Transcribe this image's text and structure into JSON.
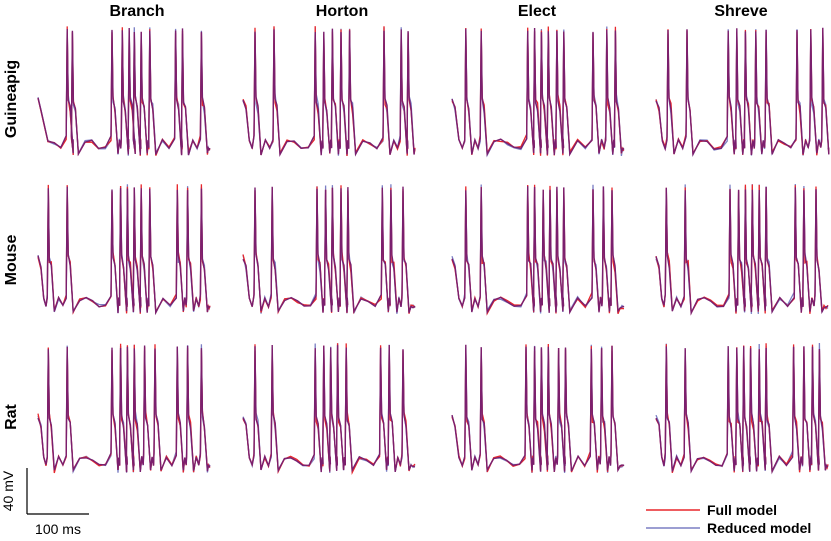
{
  "chart_data": {
    "type": "line",
    "columns": [
      "Branch",
      "Horton",
      "Elect",
      "Shreve"
    ],
    "rows": [
      "Guineapig",
      "Mouse",
      "Rat"
    ],
    "series": [
      {
        "name": "Full model",
        "color": "#e8262b"
      },
      {
        "name": "Reduced model",
        "color": "#7b7fc4"
      }
    ],
    "overlap_color": "#7a1f6e",
    "scale_bar": {
      "voltage_label": "40 mV",
      "time_label": "100 ms"
    },
    "legend_position": "bottom-right",
    "grid": false,
    "spike_times_fraction": {
      "Guineapig": {
        "Branch": [
          0.17,
          0.2,
          0.43,
          0.49,
          0.53,
          0.56,
          0.6,
          0.65,
          0.8,
          0.84,
          0.95
        ],
        "Horton": [
          0.07,
          0.18,
          0.42,
          0.47,
          0.52,
          0.57,
          0.62,
          0.82,
          0.92,
          0.96
        ],
        "Elect": [
          0.08,
          0.17,
          0.44,
          0.48,
          0.52,
          0.56,
          0.61,
          0.65,
          0.82,
          0.9,
          0.95
        ],
        "Shreve": [
          0.07,
          0.18,
          0.42,
          0.47,
          0.52,
          0.58,
          0.64,
          0.82,
          0.9,
          0.97
        ]
      },
      "Mouse": {
        "Branch": [
          0.06,
          0.17,
          0.43,
          0.48,
          0.52,
          0.56,
          0.6,
          0.65,
          0.81,
          0.87,
          0.95
        ],
        "Horton": [
          0.07,
          0.17,
          0.43,
          0.48,
          0.52,
          0.57,
          0.61,
          0.81,
          0.86,
          0.93
        ],
        "Elect": [
          0.08,
          0.17,
          0.44,
          0.48,
          0.53,
          0.57,
          0.61,
          0.65,
          0.82,
          0.88,
          0.93
        ],
        "Shreve": [
          0.06,
          0.17,
          0.43,
          0.48,
          0.52,
          0.56,
          0.6,
          0.64,
          0.81,
          0.86,
          0.93
        ]
      },
      "Rat": {
        "Branch": [
          0.06,
          0.17,
          0.43,
          0.48,
          0.52,
          0.56,
          0.62,
          0.68,
          0.81,
          0.87,
          0.95
        ],
        "Horton": [
          0.07,
          0.17,
          0.42,
          0.47,
          0.51,
          0.55,
          0.6,
          0.8,
          0.85,
          0.93
        ],
        "Elect": [
          0.08,
          0.17,
          0.43,
          0.48,
          0.52,
          0.56,
          0.62,
          0.66,
          0.81,
          0.87,
          0.93
        ],
        "Shreve": [
          0.06,
          0.17,
          0.42,
          0.47,
          0.51,
          0.55,
          0.6,
          0.64,
          0.8,
          0.86,
          0.91,
          0.95
        ]
      }
    }
  }
}
